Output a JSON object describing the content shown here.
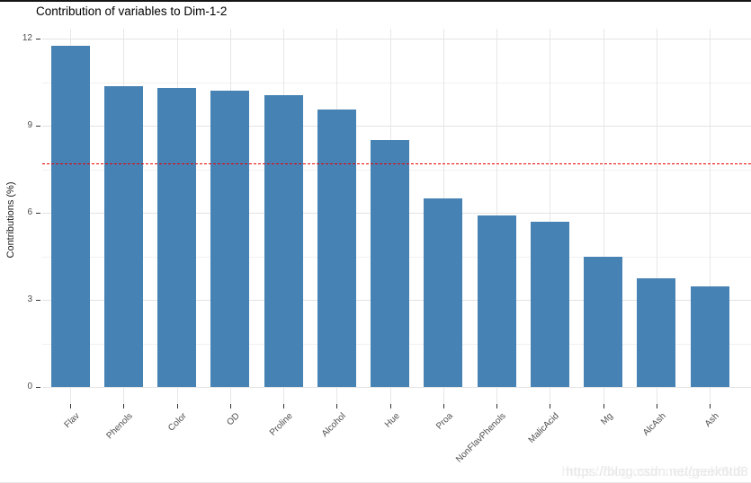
{
  "title": "Contribution of variables to Dim-1-2",
  "watermark_text": "https://blog.csdn.net/geek6td8",
  "colors": {
    "bar_fill": "#4682B4",
    "reference_line": "#EE0000",
    "grid_major": "#e3e3e3",
    "grid_minor": "#f1f1f1",
    "tick_text": "#4d4d4d",
    "title_text": "#000000"
  },
  "chart_data": {
    "type": "bar",
    "title": "Contribution of variables to Dim-1-2",
    "xlabel": "",
    "ylabel": "Contributions (%)",
    "categories": [
      "Flav",
      "Phenols",
      "Color",
      "OD",
      "Proline",
      "Alcohol",
      "Hue",
      "Proa",
      "NonFlavPhenols",
      "MalicAcid",
      "Mg",
      "AlcAsh",
      "Ash"
    ],
    "values": [
      11.75,
      10.36,
      10.3,
      10.22,
      10.05,
      9.56,
      8.5,
      6.5,
      5.91,
      5.7,
      4.48,
      3.74,
      3.46
    ],
    "ylim": [
      0,
      12
    ],
    "y_ticks": [
      0,
      3,
      6,
      9,
      12
    ],
    "y_minor_ticks": [
      1.5,
      4.5,
      7.5,
      10.5
    ],
    "reference_line": {
      "value": 7.69,
      "style": "dashed"
    },
    "grid": true,
    "legend": false,
    "bar_color": "#4682B4"
  }
}
